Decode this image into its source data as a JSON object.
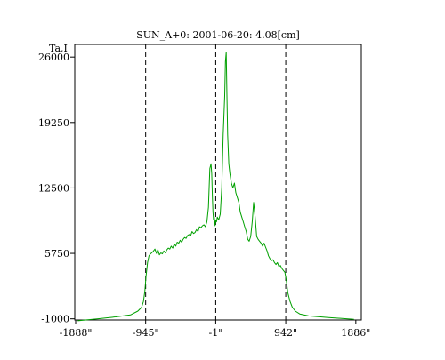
{
  "chart_data": {
    "type": "line",
    "title": "SUN_A+0: 2001-06-20: 4.08[cm]",
    "ylabel": "Ta,I",
    "xlabel": "",
    "xlim": [
      -1900,
      1960
    ],
    "ylim": [
      -1120,
      27300
    ],
    "x_ticks": [
      {
        "value": -1888,
        "label": "-1888\""
      },
      {
        "value": -945,
        "label": "-945\""
      },
      {
        "value": -1,
        "label": "-1\""
      },
      {
        "value": 942,
        "label": "942\""
      },
      {
        "value": 1886,
        "label": "1886\""
      }
    ],
    "y_ticks": [
      {
        "value": -1000,
        "label": "-1000"
      },
      {
        "value": 5750,
        "label": "5750"
      },
      {
        "value": 12500,
        "label": "12500"
      },
      {
        "value": 19250,
        "label": "19250"
      },
      {
        "value": 26000,
        "label": "26000"
      }
    ],
    "dashed_lines_x": [
      -945,
      -1,
      942
    ],
    "grid": false,
    "line_color": "#00a000",
    "series": [
      {
        "name": "",
        "x": [
          -1860,
          -1600,
          -1350,
          -1150,
          -1050,
          -1000,
          -975,
          -955,
          -940,
          -920,
          -900,
          -880,
          -850,
          -820,
          -800,
          -780,
          -760,
          -740,
          -720,
          -700,
          -680,
          -660,
          -640,
          -620,
          -600,
          -580,
          -560,
          -540,
          -520,
          -500,
          -480,
          -460,
          -440,
          -420,
          -400,
          -380,
          -360,
          -340,
          -320,
          -300,
          -280,
          -260,
          -240,
          -220,
          -200,
          -180,
          -160,
          -140,
          -120,
          -100,
          -80,
          -65,
          -55,
          -45,
          -38,
          -30,
          -20,
          -10,
          0,
          10,
          20,
          40,
          60,
          80,
          100,
          120,
          130,
          140,
          150,
          160,
          175,
          190,
          210,
          230,
          250,
          270,
          290,
          310,
          330,
          350,
          370,
          390,
          410,
          430,
          450,
          470,
          490,
          510,
          530,
          550,
          570,
          590,
          610,
          630,
          650,
          670,
          690,
          710,
          730,
          750,
          770,
          790,
          810,
          830,
          850,
          870,
          890,
          910,
          930,
          950,
          970,
          1000,
          1030,
          1070,
          1130,
          1250,
          1500,
          1860
        ],
        "values": [
          -1200,
          -1000,
          -800,
          -600,
          -200,
          200,
          800,
          1900,
          3400,
          4800,
          5500,
          5700,
          5900,
          6200,
          5750,
          6150,
          5600,
          5800,
          5700,
          6000,
          5800,
          6100,
          6300,
          6200,
          6500,
          6300,
          6700,
          6500,
          6900,
          6800,
          7100,
          6900,
          7200,
          7400,
          7300,
          7600,
          7700,
          7550,
          8000,
          7800,
          7900,
          8200,
          8000,
          8500,
          8400,
          8600,
          8700,
          8500,
          9000,
          10500,
          14500,
          15000,
          14000,
          11500,
          10000,
          9200,
          9500,
          8600,
          9200,
          9000,
          9500,
          9200,
          9800,
          12500,
          18000,
          22000,
          25500,
          26500,
          22000,
          18000,
          15000,
          14000,
          13000,
          12500,
          13000,
          12000,
          11500,
          11000,
          10000,
          9500,
          9000,
          8500,
          8000,
          7200,
          7000,
          7500,
          9000,
          11000,
          9500,
          7500,
          7200,
          7000,
          6800,
          6500,
          6800,
          6400,
          6000,
          5500,
          5200,
          5000,
          5100,
          4800,
          4600,
          4800,
          4400,
          4500,
          4200,
          4000,
          3800,
          3000,
          1700,
          800,
          200,
          -200,
          -500,
          -700,
          -850,
          -1050
        ]
      }
    ]
  }
}
